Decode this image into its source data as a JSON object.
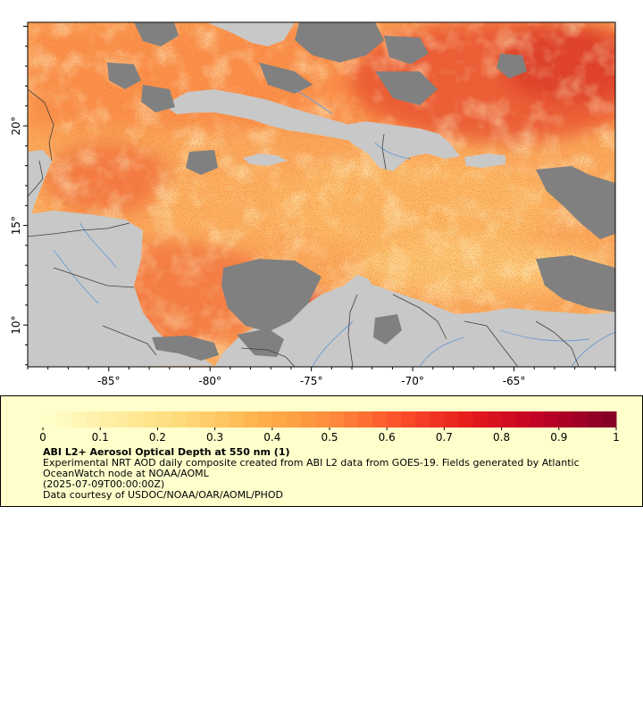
{
  "map": {
    "lat_ticks": [
      {
        "value": 20,
        "label": "20°"
      },
      {
        "value": 15,
        "label": "15°"
      },
      {
        "value": 10,
        "label": "10°"
      }
    ],
    "lon_ticks": [
      {
        "value": -85,
        "label": "-85°"
      },
      {
        "value": -80,
        "label": "-80°"
      },
      {
        "value": -75,
        "label": "-75°"
      },
      {
        "value": -70,
        "label": "-70°"
      },
      {
        "value": -65,
        "label": "-65°"
      }
    ],
    "lon_range": [
      -89,
      -60
    ],
    "lat_range": [
      7.9,
      25.2
    ],
    "colors": {
      "land": "#c8c8c8",
      "nodata": "#808080",
      "borders": "#404040",
      "rivers": "#6b9bd1"
    }
  },
  "colorbar": {
    "range": [
      0,
      1
    ],
    "ticks": [
      "0",
      "0.1",
      "0.2",
      "0.3",
      "0.4",
      "0.5",
      "0.6",
      "0.7",
      "0.8",
      "0.9",
      "1"
    ],
    "colors": [
      "#ffffcc",
      "#ffeda0",
      "#fed976",
      "#feb24c",
      "#fd8d3c",
      "#fc4e2a",
      "#e31a1c",
      "#bd0026",
      "#800026"
    ]
  },
  "legend": {
    "title": "ABI L2+ Aerosol Optical Depth at 550 nm (1)",
    "description": "Experimental NRT AOD daily composite created from ABI L2 data from GOES-19. Fields generated by Atlantic OceanWatch node at NOAA/AOML",
    "time": "(2025-07-09T00:00:00Z)",
    "credit": "Data courtesy of USDOC/NOAA/OAR/AOML/PHOD"
  }
}
